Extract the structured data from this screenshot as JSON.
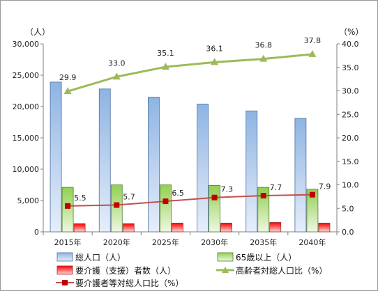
{
  "chart_data": {
    "type": "bar",
    "categories": [
      "2015年",
      "2020年",
      "2025年",
      "2030年",
      "2035年",
      "2040年"
    ],
    "left_axis": {
      "unit_label": "（人）",
      "ylim": [
        0,
        30000
      ],
      "ticks": [
        "0",
        "5,000",
        "10,000",
        "15,000",
        "20,000",
        "25,000",
        "30,000"
      ],
      "tick_values": [
        0,
        5000,
        10000,
        15000,
        20000,
        25000,
        30000
      ]
    },
    "right_axis": {
      "unit_label": "（%）",
      "ylim": [
        0,
        40
      ],
      "ticks": [
        "0.0",
        "5.0",
        "10.0",
        "15.0",
        "20.0",
        "25.0",
        "30.0",
        "35.0",
        "40.0"
      ],
      "tick_values": [
        0,
        5,
        10,
        15,
        20,
        25,
        30,
        35,
        40
      ]
    },
    "series": [
      {
        "name": "総人口（人）",
        "kind": "bar",
        "axis": "left",
        "color": "#8eb4e3",
        "values": [
          23900,
          22800,
          21500,
          20400,
          19300,
          18100
        ]
      },
      {
        "name": "65歳以上（人）",
        "kind": "bar",
        "axis": "left",
        "color": "#92d050",
        "values": [
          7100,
          7500,
          7500,
          7400,
          7100,
          6800
        ]
      },
      {
        "name": "要介護（支援）者数（人）",
        "kind": "bar",
        "axis": "left",
        "color": "#ff0000",
        "values": [
          1300,
          1300,
          1400,
          1400,
          1500,
          1400
        ]
      },
      {
        "name": "高齢者対総人口比（%）",
        "kind": "line",
        "axis": "right",
        "color": "#9bbb59",
        "marker": "triangle",
        "values": [
          29.9,
          33.0,
          35.1,
          36.1,
          36.8,
          37.8
        ],
        "labels": [
          "29.9",
          "33.0",
          "35.1",
          "36.1",
          "36.8",
          "37.8"
        ]
      },
      {
        "name": "要介護者等対総人口比（%）",
        "kind": "line",
        "axis": "right",
        "color": "#c0504d",
        "marker": "square",
        "values": [
          5.5,
          5.7,
          6.5,
          7.3,
          7.7,
          7.9
        ],
        "labels": [
          "5.5",
          "5.7",
          "6.5",
          "7.3",
          "7.7",
          "7.9"
        ]
      }
    ],
    "grid": false,
    "legend_position": "bottom"
  }
}
